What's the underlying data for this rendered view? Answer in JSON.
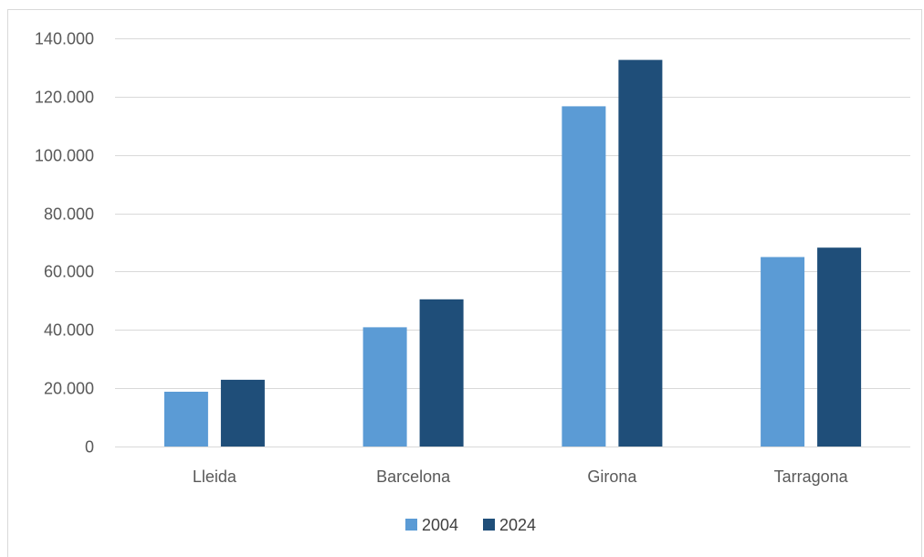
{
  "chart_data": {
    "type": "bar",
    "title": "",
    "xlabel": "",
    "ylabel": "",
    "categories": [
      "Lleida",
      "Barcelona",
      "Girona",
      "Tarragona"
    ],
    "series": [
      {
        "name": "2004",
        "values": [
          18800,
          40900,
          116700,
          65000
        ],
        "color": "#5b9bd5"
      },
      {
        "name": "2024",
        "values": [
          22900,
          50500,
          132600,
          68200
        ],
        "color": "#1f4e79"
      }
    ],
    "ylim": [
      0,
      140000
    ],
    "yticks": [
      0,
      20000,
      40000,
      60000,
      80000,
      100000,
      120000,
      140000
    ],
    "ytick_labels": [
      "0",
      "20.000",
      "40.000",
      "60.000",
      "80.000",
      "100.000",
      "120.000",
      "140.000"
    ],
    "grid": true,
    "legend_position": "bottom"
  },
  "colors": {
    "gridline": "#d9d9d9",
    "axis_text": "#595959"
  }
}
